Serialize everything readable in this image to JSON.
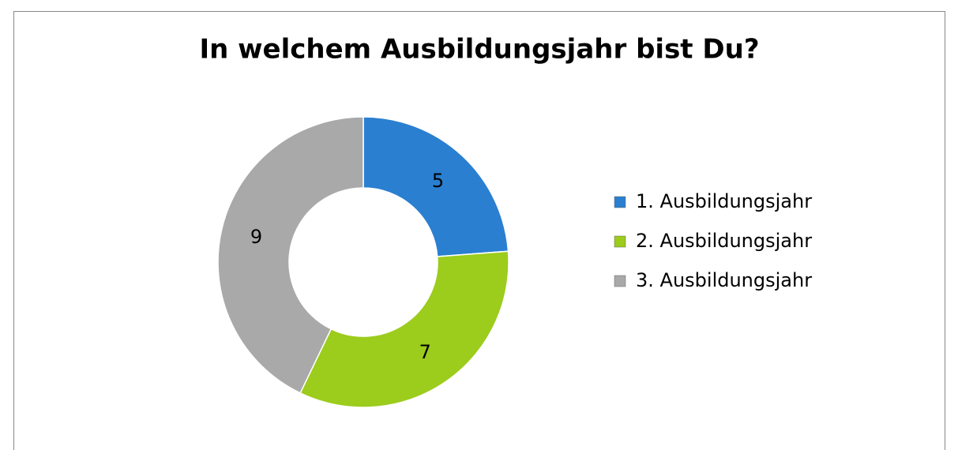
{
  "chart_data": {
    "type": "pie",
    "title": "In welchem Ausbildungsjahr bist Du?",
    "categories": [
      "1. Ausbildungsjahr",
      "2. Ausbildungsjahr",
      "3. Ausbildungsjahr"
    ],
    "values": [
      5,
      7,
      9
    ],
    "colors": [
      "#2a7fd0",
      "#9ccc1c",
      "#a9a9a9"
    ],
    "legend": "right"
  }
}
